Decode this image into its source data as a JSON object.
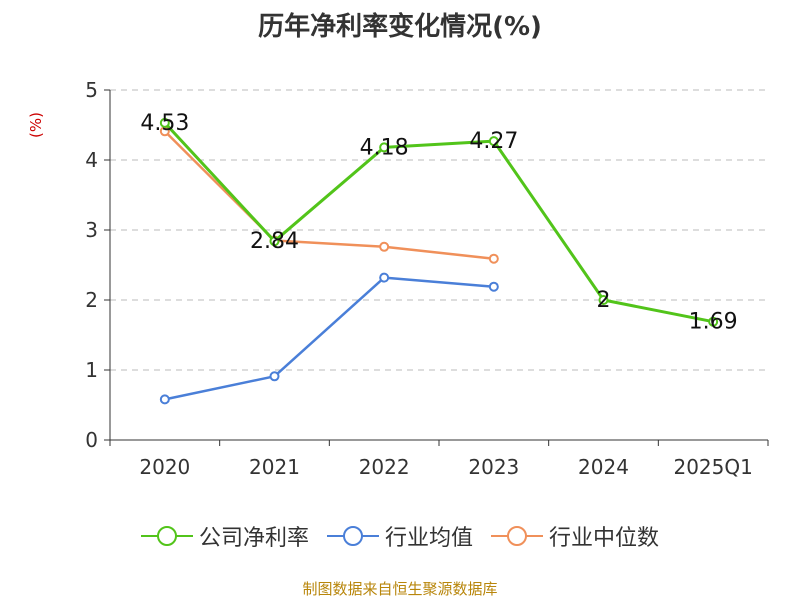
{
  "title": "历年净利率变化情况(%)",
  "source": "制图数据来自恒生聚源数据库",
  "chart_data": {
    "type": "line",
    "title": "历年净利率变化情况(%)",
    "ylabel": "(%)",
    "categories": [
      "2020",
      "2021",
      "2022",
      "2023",
      "2024",
      "2025Q1"
    ],
    "ylim": [
      0,
      5
    ],
    "yticks": [
      0,
      1,
      2,
      3,
      4,
      5
    ],
    "grid": true,
    "legend_position": "bottom",
    "series": [
      {
        "name": "公司净利率",
        "color": "#52c41a",
        "values": [
          4.53,
          2.84,
          4.18,
          4.27,
          2,
          1.69
        ],
        "labels": [
          "4.53",
          "2.84",
          "4.18",
          "4.27",
          "2",
          "1.69"
        ]
      },
      {
        "name": "行业均值",
        "color": "#4a7fd8",
        "values": [
          0.58,
          0.91,
          2.32,
          2.19,
          null,
          null
        ]
      },
      {
        "name": "行业中位数",
        "color": "#f0905a",
        "values": [
          4.41,
          2.85,
          2.76,
          2.59,
          null,
          null
        ]
      }
    ]
  }
}
